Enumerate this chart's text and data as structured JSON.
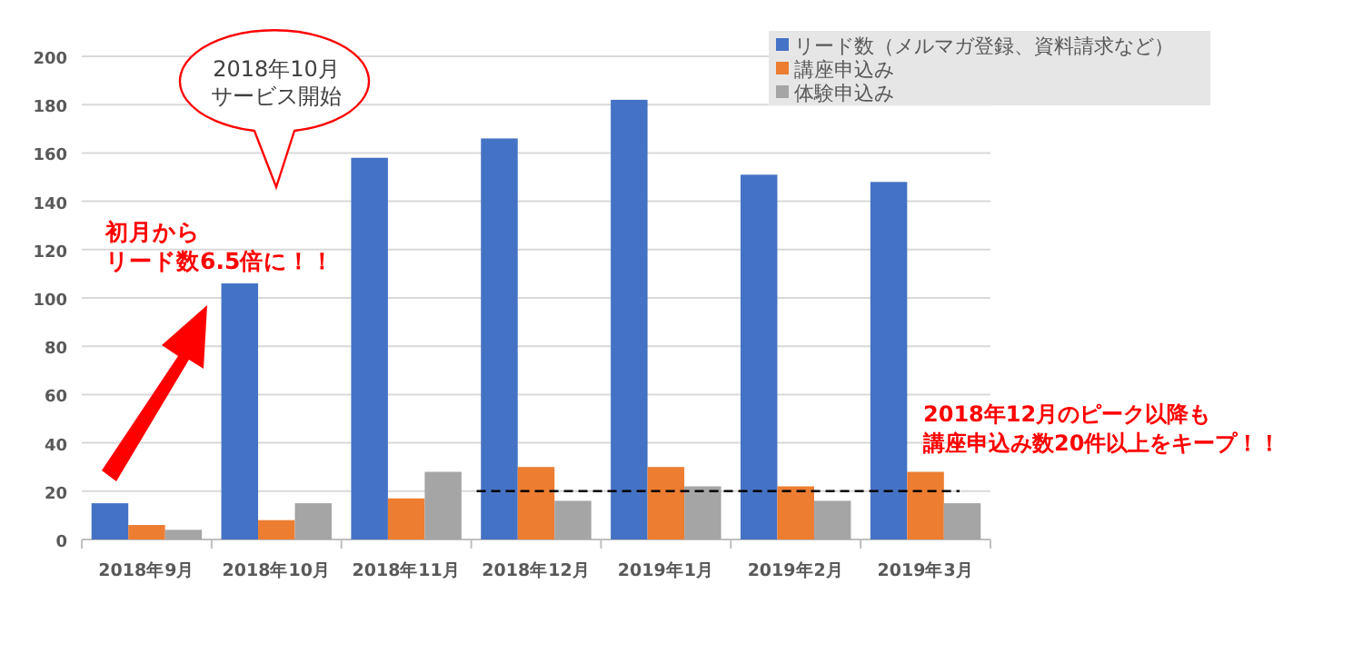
{
  "chart_data": {
    "type": "bar",
    "categories": [
      "2018年9月",
      "2018年10月",
      "2018年11月",
      "2018年12月",
      "2019年1月",
      "2019年2月",
      "2019年3月"
    ],
    "series": [
      {
        "name": "リード数（メルマガ登録、資料請求など）",
        "color": "#4472c4",
        "values": [
          15,
          106,
          158,
          166,
          182,
          151,
          148
        ]
      },
      {
        "name": "講座申込み",
        "color": "#ed7d31",
        "values": [
          6,
          8,
          17,
          30,
          30,
          22,
          28
        ]
      },
      {
        "name": "体験申込み",
        "color": "#a5a5a5",
        "values": [
          4,
          15,
          28,
          16,
          22,
          16,
          15
        ]
      }
    ],
    "ylim": [
      0,
      200
    ],
    "yticks": [
      0,
      20,
      40,
      60,
      80,
      100,
      120,
      140,
      160,
      180,
      200
    ],
    "grid": "y",
    "legend": "top right",
    "ref_lines": [
      {
        "axis": "y",
        "value": 20,
        "line_style": "dashed",
        "color": "#000000"
      }
    ],
    "annotations": [
      "2018年10月",
      "サービス開始",
      "初月から",
      "リード数6.5倍に！！",
      "2018年12月のピーク以降も",
      "講座申込み数20件以上をキープ！！"
    ]
  }
}
